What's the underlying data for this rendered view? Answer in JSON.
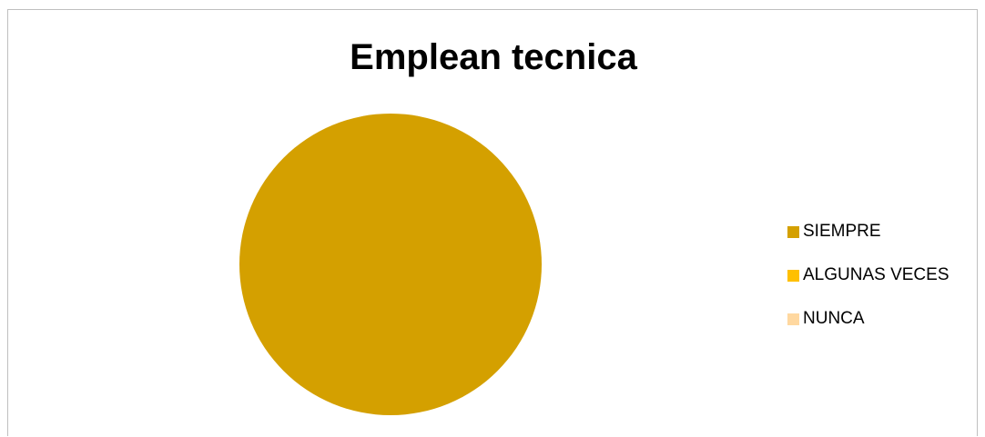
{
  "chart_data": {
    "type": "pie",
    "title": "Emplean tecnica",
    "categories": [
      "SIEMPRE",
      "ALGUNAS VECES",
      "NUNCA"
    ],
    "values": [
      100,
      0,
      0
    ],
    "colors": [
      "#D4A000",
      "#FFC000",
      "#FFD8A0"
    ],
    "legend": {
      "position": "right",
      "entries": [
        {
          "label": "SIEMPRE",
          "color": "#D4A000"
        },
        {
          "label": "ALGUNAS VECES",
          "color": "#FFC000"
        },
        {
          "label": "NUNCA",
          "color": "#FFD8A0"
        }
      ]
    }
  }
}
